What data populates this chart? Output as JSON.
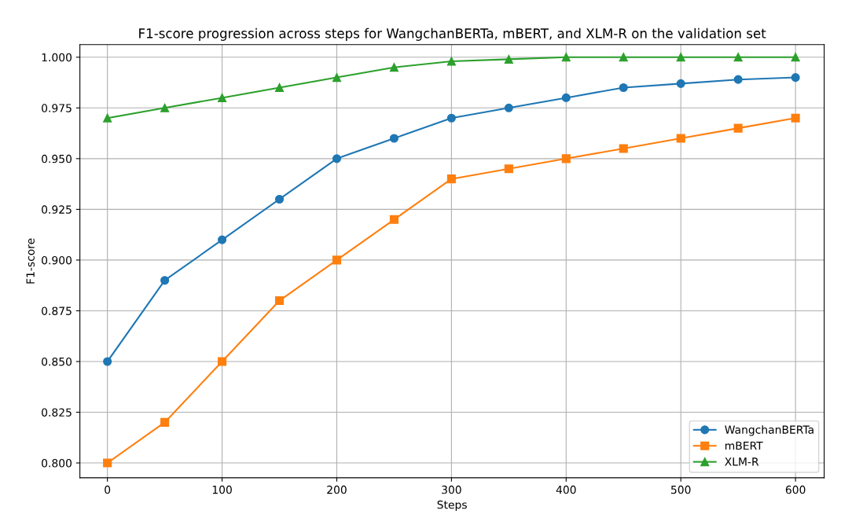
{
  "chart_data": {
    "type": "line",
    "title": "F1-score progression across steps for WangchanBERTa, mBERT, and XLM-R on the validation set",
    "xlabel": "Steps",
    "ylabel": "F1-score",
    "x": [
      0,
      50,
      100,
      150,
      200,
      250,
      300,
      350,
      400,
      450,
      500,
      550,
      600
    ],
    "series": [
      {
        "name": "WangchanBERTa",
        "color": "#1f77b4",
        "marker": "circle",
        "values": [
          0.85,
          0.89,
          0.91,
          0.93,
          0.95,
          0.96,
          0.97,
          0.975,
          0.98,
          0.985,
          0.987,
          0.989,
          0.99
        ]
      },
      {
        "name": "mBERT",
        "color": "#ff7f0e",
        "marker": "square",
        "values": [
          0.8,
          0.82,
          0.85,
          0.88,
          0.9,
          0.92,
          0.94,
          0.945,
          0.95,
          0.955,
          0.96,
          0.965,
          0.97
        ]
      },
      {
        "name": "XLM-R",
        "color": "#2ca02c",
        "marker": "triangle",
        "values": [
          0.97,
          0.975,
          0.98,
          0.985,
          0.99,
          0.995,
          0.998,
          0.999,
          1.0,
          1.0,
          1.0,
          1.0,
          1.0
        ]
      }
    ],
    "xlim": [
      -24,
      625
    ],
    "xticks": [
      0,
      100,
      200,
      300,
      400,
      500,
      600
    ],
    "ylim": [
      0.7927,
      1.0062
    ],
    "yticks": [
      {
        "value": 0.8,
        "label": "0.800"
      },
      {
        "value": 0.825,
        "label": "0.825"
      },
      {
        "value": 0.85,
        "label": "0.850"
      },
      {
        "value": 0.875,
        "label": "0.875"
      },
      {
        "value": 0.9,
        "label": "0.900"
      },
      {
        "value": 0.925,
        "label": "0.925"
      },
      {
        "value": 0.95,
        "label": "0.950"
      },
      {
        "value": 0.975,
        "label": "0.975"
      },
      {
        "value": 1.0,
        "label": "1.000"
      }
    ],
    "grid": true,
    "legend": "bottom right",
    "line_style": "solid"
  }
}
